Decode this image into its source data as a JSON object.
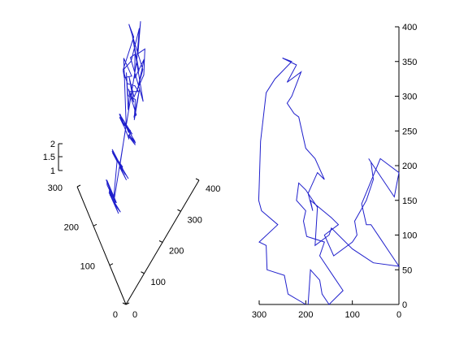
{
  "chart_data": [
    {
      "type": "line3d",
      "title": "",
      "series": [
        {
          "color": "#1f1fcc",
          "tour_order": [
            0,
            7,
            13,
            3,
            10,
            16,
            1,
            11,
            5,
            14,
            19,
            8,
            2,
            12,
            17,
            6,
            15,
            4,
            18,
            9,
            21,
            27,
            23,
            29,
            20,
            25,
            31,
            22,
            28,
            24,
            30,
            26,
            36,
            33,
            39,
            34,
            37,
            32,
            38,
            35,
            44,
            41,
            47,
            40,
            45,
            42,
            48,
            43,
            46,
            49,
            52,
            57,
            50,
            55,
            53,
            59,
            51,
            56,
            54,
            58,
            66,
            61,
            64,
            69,
            60,
            67,
            62,
            68,
            63,
            65,
            74,
            71,
            77,
            70,
            75,
            72,
            79,
            73,
            76,
            78,
            86,
            81,
            88,
            83,
            80,
            85,
            89,
            82,
            87,
            84,
            93,
            98,
            91,
            96,
            90,
            99,
            94,
            92,
            97,
            95
          ],
          "points": [
            [
              318,
              340,
              1.0
            ],
            [
              299,
              314,
              1.0
            ],
            [
              341,
              287,
              1.0
            ],
            [
              235,
              303,
              1.1
            ],
            [
              320,
              350,
              1.1
            ],
            [
              260,
              295,
              1.2
            ],
            [
              305,
              330,
              1.2
            ],
            [
              275,
              316,
              1.3
            ],
            [
              340,
              345,
              1.3
            ],
            [
              250,
              320,
              1.4
            ],
            [
              310,
              300,
              1.4
            ],
            [
              265,
              335,
              1.5
            ],
            [
              295,
              290,
              1.5
            ],
            [
              330,
              325,
              1.6
            ],
            [
              245,
              310,
              1.6
            ],
            [
              315,
              360,
              1.7
            ],
            [
              280,
              298,
              1.7
            ],
            [
              300,
              340,
              1.8
            ],
            [
              255,
              330,
              1.8
            ],
            [
              325,
              305,
              1.9
            ],
            [
              240,
              270,
              1.0
            ],
            [
              265,
              280,
              1.1
            ],
            [
              230,
              250,
              1.1
            ],
            [
              250,
              265,
              1.2
            ],
            [
              275,
              255,
              1.2
            ],
            [
              220,
              240,
              1.3
            ],
            [
              245,
              230,
              1.3
            ],
            [
              285,
              270,
              1.4
            ],
            [
              235,
              260,
              1.4
            ],
            [
              260,
              245,
              1.5
            ],
            [
              290,
              260,
              1.5
            ],
            [
              225,
              275,
              1.6
            ],
            [
              280,
              240,
              1.6
            ],
            [
              215,
              260,
              1.7
            ],
            [
              255,
              235,
              1.7
            ],
            [
              295,
              250,
              1.8
            ],
            [
              230,
              225,
              1.8
            ],
            [
              270,
              225,
              1.9
            ],
            [
              240,
              245,
              1.9
            ],
            [
              210,
              235,
              2.0
            ],
            [
              200,
              230,
              1.0
            ],
            [
              225,
              215,
              1.1
            ],
            [
              190,
              220,
              1.1
            ],
            [
              215,
              205,
              1.2
            ],
            [
              235,
              210,
              1.2
            ],
            [
              205,
              200,
              1.3
            ],
            [
              180,
              210,
              1.3
            ],
            [
              230,
              195,
              1.4
            ],
            [
              195,
              190,
              1.4
            ],
            [
              220,
              185,
              1.5
            ],
            [
              185,
              180,
              1.5
            ],
            [
              210,
              175,
              1.6
            ],
            [
              175,
              190,
              1.6
            ],
            [
              200,
              170,
              1.7
            ],
            [
              225,
              165,
              1.7
            ],
            [
              170,
              175,
              1.8
            ],
            [
              195,
              160,
              1.8
            ],
            [
              215,
              155,
              1.9
            ],
            [
              180,
              160,
              1.9
            ],
            [
              205,
              150,
              2.0
            ],
            [
              165,
              160,
              1.0
            ],
            [
              190,
              150,
              1.1
            ],
            [
              160,
              145,
              1.1
            ],
            [
              185,
              140,
              1.2
            ],
            [
              210,
              135,
              1.2
            ],
            [
              155,
              135,
              1.3
            ],
            [
              180,
              125,
              1.3
            ],
            [
              200,
              120,
              1.4
            ],
            [
              170,
              120,
              1.4
            ],
            [
              195,
              110,
              1.5
            ],
            [
              150,
              120,
              1.5
            ],
            [
              175,
              105,
              1.6
            ],
            [
              145,
              110,
              1.6
            ],
            [
              165,
              100,
              1.7
            ],
            [
              190,
              95,
              1.7
            ],
            [
              140,
              100,
              1.8
            ],
            [
              160,
              90,
              1.8
            ],
            [
              180,
              85,
              1.9
            ],
            [
              150,
              85,
              1.9
            ],
            [
              170,
              75,
              2.0
            ],
            [
              135,
              90,
              1.0
            ],
            [
              155,
              80,
              1.1
            ],
            [
              130,
              75,
              1.1
            ],
            [
              150,
              70,
              1.2
            ],
            [
              170,
              65,
              1.2
            ],
            [
              125,
              65,
              1.3
            ],
            [
              145,
              60,
              1.3
            ],
            [
              165,
              55,
              1.4
            ],
            [
              135,
              55,
              1.4
            ],
            [
              155,
              45,
              1.5
            ],
            [
              120,
              55,
              1.5
            ],
            [
              140,
              45,
              1.6
            ],
            [
              115,
              45,
              1.6
            ],
            [
              135,
              35,
              1.7
            ],
            [
              155,
              35,
              1.7
            ],
            [
              110,
              35,
              1.8
            ],
            [
              130,
              30,
              1.8
            ],
            [
              150,
              25,
              1.9
            ],
            [
              120,
              25,
              1.9
            ],
            [
              140,
              20,
              2.0
            ]
          ]
        }
      ],
      "x_ticks": [
        "0",
        "100",
        "200",
        "300"
      ],
      "y_ticks": [
        "0",
        "100",
        "200",
        "300",
        "400"
      ],
      "z_ticks": [
        "1",
        "1.5",
        "2"
      ],
      "xlim": [
        0,
        300
      ],
      "ylim": [
        0,
        400
      ],
      "zlim": [
        1,
        2
      ],
      "grid": false
    },
    {
      "type": "line",
      "title": "",
      "xlabel": "",
      "ylabel": "",
      "xlim": [
        0,
        300
      ],
      "ylim": [
        0,
        400
      ],
      "x_reversed": true,
      "y_axis_side": "right",
      "grid": false,
      "x_ticks": [
        "0",
        "100",
        "200",
        "300"
      ],
      "y_ticks": [
        "0",
        "50",
        "100",
        "150",
        "200",
        "250",
        "300",
        "350",
        "400"
      ],
      "series": [
        {
          "color": "#1f1fcc",
          "x": [
            200,
            238,
            246,
            283,
            285,
            300,
            260,
            295,
            301,
            300,
            297,
            285,
            266,
            230,
            250,
            220,
            240,
            210,
            230,
            240,
            225,
            215,
            200,
            180,
            160,
            175,
            195,
            185,
            190,
            145,
            130,
            160,
            150,
            140,
            100,
            90,
            95,
            70,
            55,
            60,
            65,
            10,
            0,
            40,
            80,
            70,
            60,
            40,
            20,
            0,
            55,
            100,
            145,
            150,
            180,
            175,
            200,
            215,
            220,
            200,
            205,
            198,
            160,
            170,
            140,
            120,
            150,
            165,
            170,
            190,
            195
          ],
          "y": [
            0,
            15,
            42,
            50,
            85,
            90,
            115,
            135,
            150,
            170,
            235,
            305,
            325,
            350,
            355,
            345,
            320,
            335,
            300,
            290,
            275,
            270,
            225,
            210,
            180,
            190,
            160,
            135,
            150,
            125,
            115,
            100,
            85,
            70,
            90,
            100,
            120,
            150,
            180,
            205,
            210,
            155,
            190,
            210,
            145,
            115,
            115,
            95,
            75,
            55,
            60,
            80,
            110,
            100,
            85,
            140,
            165,
            175,
            150,
            135,
            120,
            98,
            90,
            70,
            40,
            20,
            0,
            15,
            35,
            50,
            0
          ]
        }
      ]
    }
  ]
}
